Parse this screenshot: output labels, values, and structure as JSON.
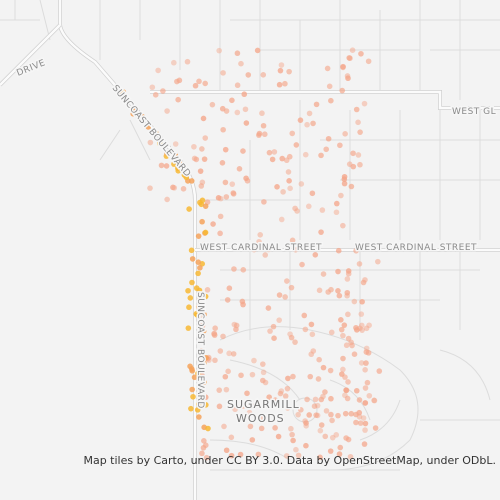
{
  "map": {
    "street_labels": [
      "DRIVE",
      "SUNCOAST BOULEVARD",
      "WEST GL",
      "WEST CARDINAL STREET",
      "WEST CARDINAL STREET",
      "SUNCOAST BOULEVARD"
    ],
    "place_label": [
      "SUGARMILL",
      "WOODS"
    ],
    "attribution": "Map tiles by Carto, under CC BY 3.0. Data by OpenStreetMap, under ODbL."
  }
}
